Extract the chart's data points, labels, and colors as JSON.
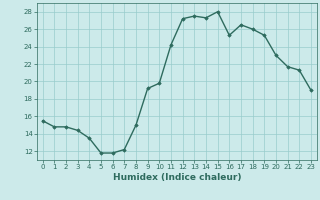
{
  "x": [
    0,
    1,
    2,
    3,
    4,
    5,
    6,
    7,
    8,
    9,
    10,
    11,
    12,
    13,
    14,
    15,
    16,
    17,
    18,
    19,
    20,
    21,
    22,
    23
  ],
  "y": [
    15.5,
    14.8,
    14.8,
    14.4,
    13.5,
    11.8,
    11.8,
    12.2,
    15.0,
    19.2,
    19.8,
    24.2,
    27.2,
    27.5,
    27.3,
    28.0,
    25.3,
    26.5,
    26.0,
    25.3,
    23.0,
    21.7,
    21.3,
    19.0
  ],
  "line_color": "#2e6b5e",
  "marker": "D",
  "marker_size": 1.8,
  "linewidth": 1.0,
  "xlabel": "Humidex (Indice chaleur)",
  "xlim": [
    -0.5,
    23.5
  ],
  "ylim": [
    11,
    29
  ],
  "yticks": [
    12,
    14,
    16,
    18,
    20,
    22,
    24,
    26,
    28
  ],
  "xticks": [
    0,
    1,
    2,
    3,
    4,
    5,
    6,
    7,
    8,
    9,
    10,
    11,
    12,
    13,
    14,
    15,
    16,
    17,
    18,
    19,
    20,
    21,
    22,
    23
  ],
  "bg_color": "#cceaea",
  "grid_color": "#99cccc",
  "tick_color": "#2e6b5e",
  "label_color": "#2e6b5e",
  "xlabel_fontsize": 6.5,
  "tick_fontsize": 5.0
}
